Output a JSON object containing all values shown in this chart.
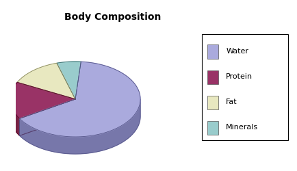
{
  "title": "Body Composition",
  "labels": [
    "Water",
    "Protein",
    "Fat",
    "Minerals"
  ],
  "values": [
    65,
    16,
    13,
    6
  ],
  "top_colors": [
    "#aaaadd",
    "#993366",
    "#e8e8c0",
    "#99cccc"
  ],
  "side_colors": [
    "#7777aa",
    "#772244",
    "#b0b088",
    "#558888"
  ],
  "edge_colors": [
    "#555588",
    "#550022",
    "#888860",
    "#336666"
  ],
  "startangle": 85,
  "background_color": "#ffffff",
  "title_fontsize": 10,
  "legend_fontsize": 8,
  "legend_labels": [
    "Water",
    "Protein",
    "Fat",
    "Minerals"
  ],
  "legend_colors": [
    "#aaaadd",
    "#993366",
    "#e8e8c0",
    "#99cccc"
  ]
}
